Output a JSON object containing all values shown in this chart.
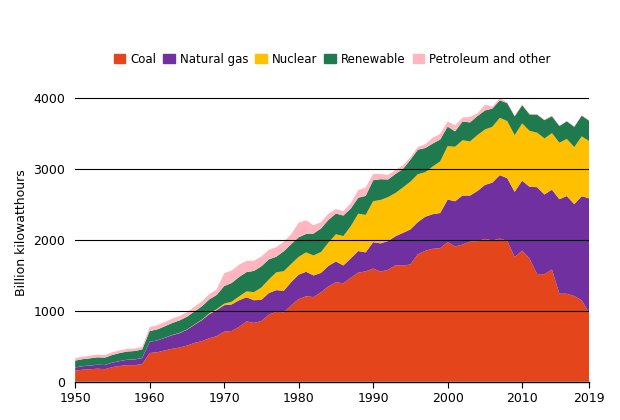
{
  "years": [
    1950,
    1951,
    1952,
    1953,
    1954,
    1955,
    1956,
    1957,
    1958,
    1959,
    1960,
    1961,
    1962,
    1963,
    1964,
    1965,
    1966,
    1967,
    1968,
    1969,
    1970,
    1971,
    1972,
    1973,
    1974,
    1975,
    1976,
    1977,
    1978,
    1979,
    1980,
    1981,
    1982,
    1983,
    1984,
    1985,
    1986,
    1987,
    1988,
    1989,
    1990,
    1991,
    1992,
    1993,
    1994,
    1995,
    1996,
    1997,
    1998,
    1999,
    2000,
    2001,
    2002,
    2003,
    2004,
    2005,
    2006,
    2007,
    2008,
    2009,
    2010,
    2011,
    2012,
    2013,
    2014,
    2015,
    2016,
    2017,
    2018,
    2019
  ],
  "coal": [
    154,
    167,
    174,
    182,
    175,
    204,
    220,
    232,
    232,
    246,
    403,
    413,
    438,
    462,
    480,
    507,
    544,
    570,
    610,
    641,
    704,
    713,
    771,
    848,
    828,
    853,
    944,
    985,
    976,
    1075,
    1162,
    1203,
    1192,
    1259,
    1342,
    1402,
    1386,
    1464,
    1537,
    1554,
    1594,
    1551,
    1576,
    1639,
    1635,
    1652,
    1795,
    1845,
    1873,
    1881,
    1966,
    1904,
    1933,
    1974,
    1978,
    2013,
    1990,
    2016,
    1986,
    1755,
    1847,
    1733,
    1517,
    1514,
    1581,
    1239,
    1239,
    1206,
    1146,
    966
  ],
  "natural_gas": [
    45,
    50,
    52,
    55,
    58,
    64,
    69,
    76,
    80,
    86,
    158,
    166,
    177,
    192,
    203,
    223,
    255,
    295,
    340,
    367,
    373,
    375,
    376,
    341,
    319,
    300,
    305,
    305,
    305,
    329,
    346,
    346,
    305,
    274,
    290,
    292,
    252,
    273,
    304,
    268,
    373,
    398,
    406,
    411,
    462,
    494,
    455,
    480,
    488,
    496,
    601,
    639,
    691,
    649,
    710,
    760,
    816,
    896,
    882,
    921,
    987,
    1013,
    1225,
    1125,
    1126,
    1333,
    1378,
    1296,
    1469,
    1617
  ],
  "nuclear": [
    1,
    1,
    1,
    1,
    1,
    1,
    1,
    1,
    1,
    1,
    1,
    1,
    2,
    3,
    4,
    4,
    5,
    7,
    13,
    14,
    22,
    38,
    54,
    83,
    114,
    173,
    191,
    251,
    276,
    255,
    251,
    273,
    282,
    294,
    328,
    384,
    414,
    455,
    527,
    529,
    577,
    613,
    619,
    610,
    641,
    673,
    675,
    628,
    673,
    728,
    754,
    769,
    780,
    764,
    788,
    782,
    787,
    807,
    806,
    799,
    807,
    790,
    769,
    789,
    797,
    797,
    805,
    805,
    843,
    809
  ],
  "renewable": [
    96,
    98,
    101,
    104,
    104,
    107,
    113,
    115,
    118,
    120,
    150,
    155,
    161,
    168,
    175,
    180,
    184,
    189,
    196,
    200,
    248,
    264,
    274,
    272,
    300,
    300,
    284,
    220,
    281,
    279,
    276,
    261,
    309,
    332,
    321,
    292,
    290,
    248,
    225,
    268,
    295,
    292,
    249,
    269,
    259,
    310,
    345,
    341,
    323,
    309,
    275,
    217,
    264,
    268,
    269,
    268,
    257,
    247,
    253,
    266,
    257,
    232,
    254,
    259,
    238,
    235,
    249,
    286,
    292,
    287
  ],
  "petroleum": [
    33,
    36,
    38,
    38,
    36,
    38,
    37,
    38,
    36,
    38,
    56,
    58,
    60,
    61,
    62,
    63,
    67,
    69,
    74,
    76,
    182,
    175,
    174,
    158,
    144,
    137,
    136,
    133,
    135,
    139,
    206,
    192,
    116,
    90,
    88,
    64,
    62,
    73,
    107,
    119,
    88,
    73,
    65,
    55,
    54,
    34,
    38,
    53,
    82,
    80,
    73,
    84,
    54,
    79,
    36,
    83,
    27,
    27,
    15,
    12,
    12,
    9,
    8,
    10,
    12,
    10,
    7,
    7,
    8,
    7
  ],
  "colors": {
    "coal": "#e5451a",
    "natural_gas": "#7030a0",
    "nuclear": "#ffc000",
    "renewable": "#1f7a4f",
    "petroleum": "#ffb6c1"
  },
  "legend_labels": [
    "Coal",
    "Natural gas",
    "Nuclear",
    "Renewable",
    "Petroleum and other"
  ],
  "ylabel": "Billion kilowatthours",
  "ylim": [
    0,
    4200
  ],
  "yticks": [
    0,
    1000,
    2000,
    3000,
    4000
  ],
  "xlim": [
    1950,
    2019
  ],
  "xticks": [
    1950,
    1960,
    1970,
    1980,
    1990,
    2000,
    2010,
    2019
  ],
  "figsize": [
    6.2,
    4.2
  ],
  "dpi": 100
}
